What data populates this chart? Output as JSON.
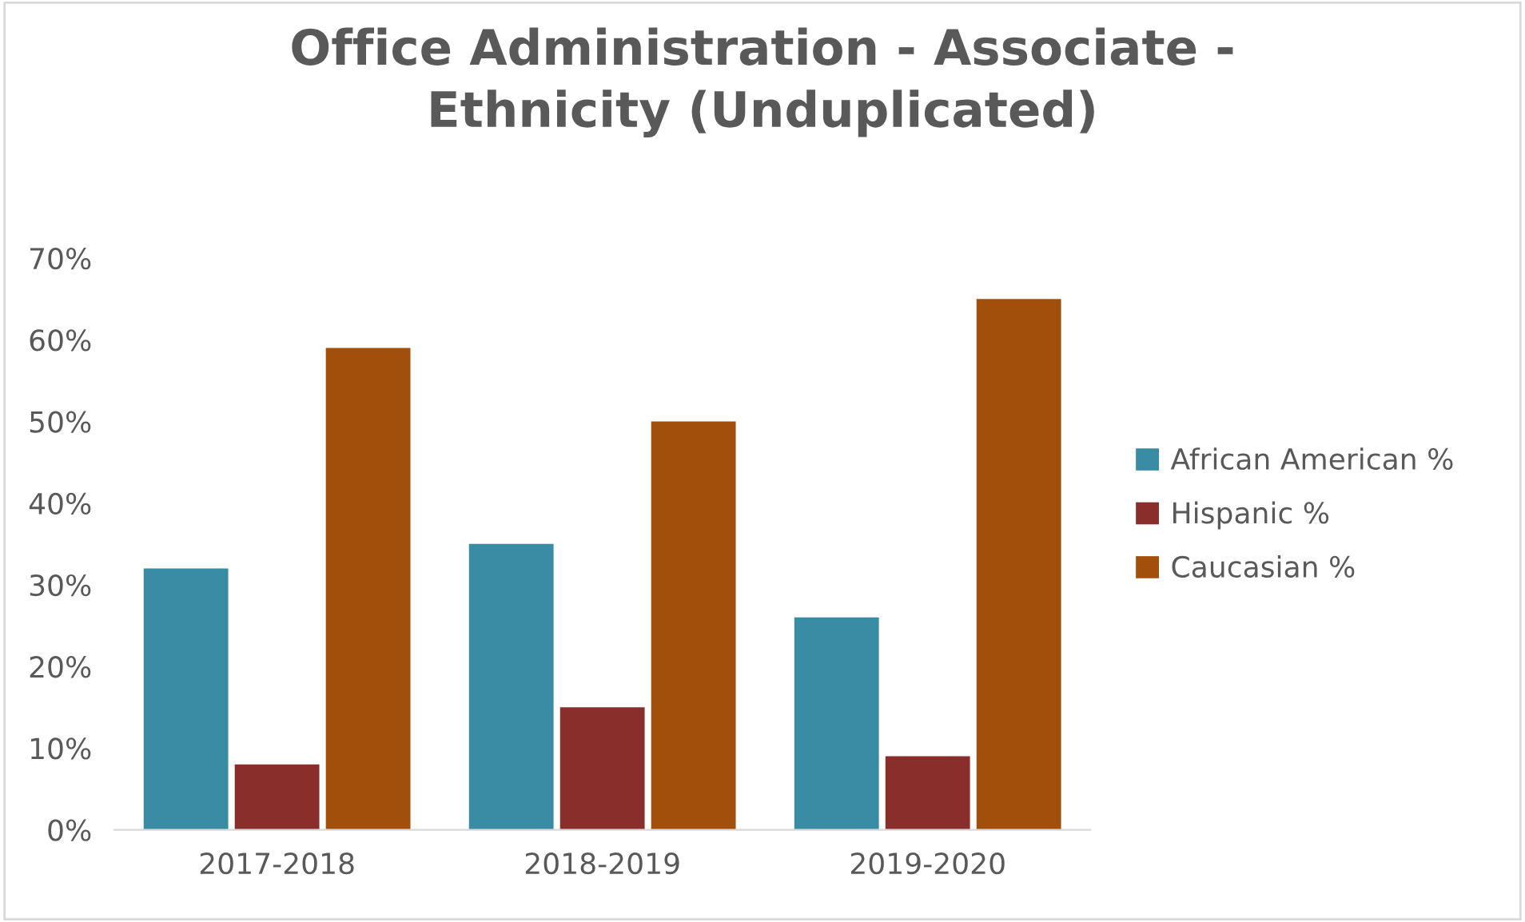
{
  "chart_data": {
    "type": "bar",
    "title": "Office Administration - Associate -\nEthnicity (Unduplicated)",
    "categories": [
      "2017-2018",
      "2018-2019",
      "2019-2020"
    ],
    "series": [
      {
        "name": "African American %",
        "color": "#3a8ca5",
        "values": [
          32,
          35,
          26
        ]
      },
      {
        "name": "Hispanic %",
        "color": "#8a2e2c",
        "values": [
          8,
          15,
          9
        ]
      },
      {
        "name": "Caucasian %",
        "color": "#a34f0c",
        "values": [
          59,
          50,
          65
        ]
      }
    ],
    "ylim": [
      0,
      70
    ],
    "yticks": [
      {
        "value": 0,
        "label": "0%"
      },
      {
        "value": 10,
        "label": "10%"
      },
      {
        "value": 20,
        "label": "20%"
      },
      {
        "value": 30,
        "label": "30%"
      },
      {
        "value": 40,
        "label": "40%"
      },
      {
        "value": 50,
        "label": "50%"
      },
      {
        "value": 60,
        "label": "60%"
      },
      {
        "value": 70,
        "label": "70%"
      }
    ],
    "grid": false,
    "legend": "right"
  }
}
